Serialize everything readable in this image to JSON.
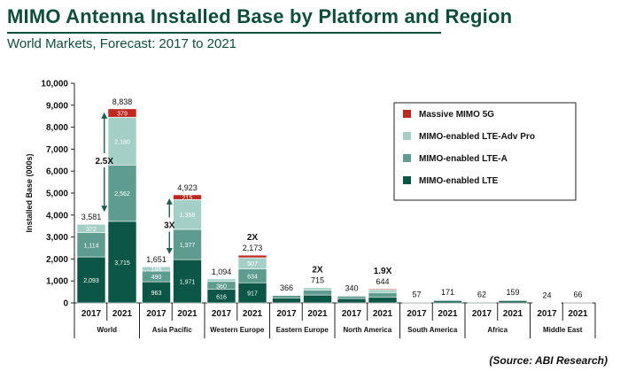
{
  "title": "MIMO Antenna Installed Base by Platform and Region",
  "subtitle": "World Markets, Forecast: 2017 to 2021",
  "source": "(Source: ABI Research)",
  "colors": {
    "lte": "#0b5646",
    "lte_a": "#5e9c8f",
    "lte_adv_pro": "#a3cfc6",
    "massive_5g": "#c0271f",
    "title": "#0d4f3c",
    "arrow": "#1f5f50"
  },
  "chart_data": {
    "type": "bar",
    "stacked": true,
    "title": "MIMO Antenna Installed Base by Platform and Region",
    "subtitle": "World Markets, Forecast: 2017 to 2021",
    "ylabel": "Installed Base (000s)",
    "ylim": [
      0,
      10000
    ],
    "yticks": [
      0,
      1000,
      2000,
      3000,
      4000,
      5000,
      6000,
      7000,
      8000,
      9000,
      10000
    ],
    "ytick_labels": [
      "0",
      "1,000",
      "2,000",
      "3,000",
      "4,000",
      "5,000",
      "6,000",
      "7,000",
      "8,000",
      "9,000",
      "10,000"
    ],
    "grid": false,
    "legend_position": "top-right",
    "legend": [
      "Massive MIMO 5G",
      "MIMO-enabled LTE-Adv Pro",
      "MIMO-enabled LTE-A",
      "MIMO-enabled LTE"
    ],
    "groups": [
      {
        "region": "World",
        "bars": [
          {
            "year": "2017",
            "total": 3581,
            "total_label": "3,581",
            "segments": {
              "lte": 2093,
              "lte_a": 1114,
              "lte_adv_pro": 372,
              "massive_5g": 0
            },
            "labels": {
              "lte": "2,093",
              "lte_a": "1,114",
              "lte_adv_pro": "372",
              "massive_5g": ""
            }
          },
          {
            "year": "2021",
            "total": 8838,
            "total_label": "8,838",
            "segments": {
              "lte": 3715,
              "lte_a": 2562,
              "lte_adv_pro": 2180,
              "massive_5g": 379
            },
            "labels": {
              "lte": "3,715",
              "lte_a": "2,562",
              "lte_adv_pro": "2,180",
              "massive_5g": "379"
            }
          }
        ]
      },
      {
        "region": "Asia Pacific",
        "bars": [
          {
            "year": "2017",
            "total": 1651,
            "total_label": "1,651",
            "segments": {
              "lte": 963,
              "lte_a": 490,
              "lte_adv_pro": 196,
              "massive_5g": 0
            },
            "labels": {
              "lte": "963",
              "lte_a": "490",
              "lte_adv_pro": "196",
              "massive_5g": ""
            }
          },
          {
            "year": "2021",
            "total": 4923,
            "total_label": "4,923",
            "segments": {
              "lte": 1971,
              "lte_a": 1377,
              "lte_adv_pro": 1358,
              "massive_5g": 215
            },
            "labels": {
              "lte": "1,971",
              "lte_a": "1,377",
              "lte_adv_pro": "1,358",
              "massive_5g": "215"
            }
          }
        ]
      },
      {
        "region": "Western Europe",
        "bars": [
          {
            "year": "2017",
            "total": 1094,
            "total_label": "1,094",
            "segments": {
              "lte": 616,
              "lte_a": 360,
              "lte_adv_pro": 118,
              "massive_5g": 0
            },
            "labels": {
              "lte": "616",
              "lte_a": "360",
              "lte_adv_pro": "",
              "massive_5g": ""
            }
          },
          {
            "year": "2021",
            "total": 2173,
            "total_label": "2,173",
            "segments": {
              "lte": 917,
              "lte_a": 634,
              "lte_adv_pro": 507,
              "massive_5g": 115
            },
            "labels": {
              "lte": "917",
              "lte_a": "634",
              "lte_adv_pro": "507",
              "massive_5g": ""
            }
          }
        ]
      },
      {
        "region": "Eastern Europe",
        "bars": [
          {
            "year": "2017",
            "total": 366,
            "total_label": "366",
            "segments": {
              "lte": 230,
              "lte_a": 110,
              "lte_adv_pro": 26,
              "massive_5g": 0
            },
            "labels": {
              "lte": "",
              "lte_a": "",
              "lte_adv_pro": "",
              "massive_5g": ""
            }
          },
          {
            "year": "2021",
            "total": 715,
            "total_label": "715",
            "segments": {
              "lte": 360,
              "lte_a": 220,
              "lte_adv_pro": 115,
              "massive_5g": 20
            },
            "labels": {
              "lte": "",
              "lte_a": "",
              "lte_adv_pro": "",
              "massive_5g": ""
            }
          }
        ]
      },
      {
        "region": "North America",
        "bars": [
          {
            "year": "2017",
            "total": 340,
            "total_label": "340",
            "segments": {
              "lte": 200,
              "lte_a": 110,
              "lte_adv_pro": 30,
              "massive_5g": 0
            },
            "labels": {
              "lte": "",
              "lte_a": "",
              "lte_adv_pro": "",
              "massive_5g": ""
            }
          },
          {
            "year": "2021",
            "total": 644,
            "total_label": "644",
            "segments": {
              "lte": 270,
              "lte_a": 200,
              "lte_adv_pro": 134,
              "massive_5g": 40
            },
            "labels": {
              "lte": "",
              "lte_a": "",
              "lte_adv_pro": "",
              "massive_5g": ""
            }
          }
        ]
      },
      {
        "region": "South America",
        "bars": [
          {
            "year": "2017",
            "total": 57,
            "total_label": "57",
            "segments": {
              "lte": 40,
              "lte_a": 14,
              "lte_adv_pro": 3,
              "massive_5g": 0
            },
            "labels": {
              "lte": "",
              "lte_a": "",
              "lte_adv_pro": "",
              "massive_5g": ""
            }
          },
          {
            "year": "2021",
            "total": 171,
            "total_label": "171",
            "segments": {
              "lte": 90,
              "lte_a": 55,
              "lte_adv_pro": 24,
              "massive_5g": 2
            },
            "labels": {
              "lte": "",
              "lte_a": "",
              "lte_adv_pro": "",
              "massive_5g": ""
            }
          }
        ]
      },
      {
        "region": "Africa",
        "bars": [
          {
            "year": "2017",
            "total": 62,
            "total_label": "62",
            "segments": {
              "lte": 45,
              "lte_a": 14,
              "lte_adv_pro": 3,
              "massive_5g": 0
            },
            "labels": {
              "lte": "",
              "lte_a": "",
              "lte_adv_pro": "",
              "massive_5g": ""
            }
          },
          {
            "year": "2021",
            "total": 159,
            "total_label": "159",
            "segments": {
              "lte": 90,
              "lte_a": 50,
              "lte_adv_pro": 17,
              "massive_5g": 2
            },
            "labels": {
              "lte": "",
              "lte_a": "",
              "lte_adv_pro": "",
              "massive_5g": ""
            }
          }
        ]
      },
      {
        "region": "Middle East",
        "bars": [
          {
            "year": "2017",
            "total": 24,
            "total_label": "24",
            "segments": {
              "lte": 17,
              "lte_a": 6,
              "lte_adv_pro": 1,
              "massive_5g": 0
            },
            "labels": {
              "lte": "",
              "lte_a": "",
              "lte_adv_pro": "",
              "massive_5g": ""
            }
          },
          {
            "year": "2021",
            "total": 66,
            "total_label": "66",
            "segments": {
              "lte": 38,
              "lte_a": 20,
              "lte_adv_pro": 7,
              "massive_5g": 1
            },
            "labels": {
              "lte": "",
              "lte_a": "",
              "lte_adv_pro": "",
              "massive_5g": ""
            }
          }
        ]
      }
    ],
    "annotations": [
      {
        "text": "2.5X",
        "region": "World",
        "style": "double-arrow"
      },
      {
        "text": "3X",
        "region": "Asia Pacific",
        "style": "double-arrow"
      },
      {
        "text": "2X",
        "region": "Western Europe",
        "style": "label"
      },
      {
        "text": "2X",
        "region": "Eastern Europe",
        "style": "label"
      },
      {
        "text": "1.9X",
        "region": "North America",
        "style": "label"
      }
    ]
  }
}
